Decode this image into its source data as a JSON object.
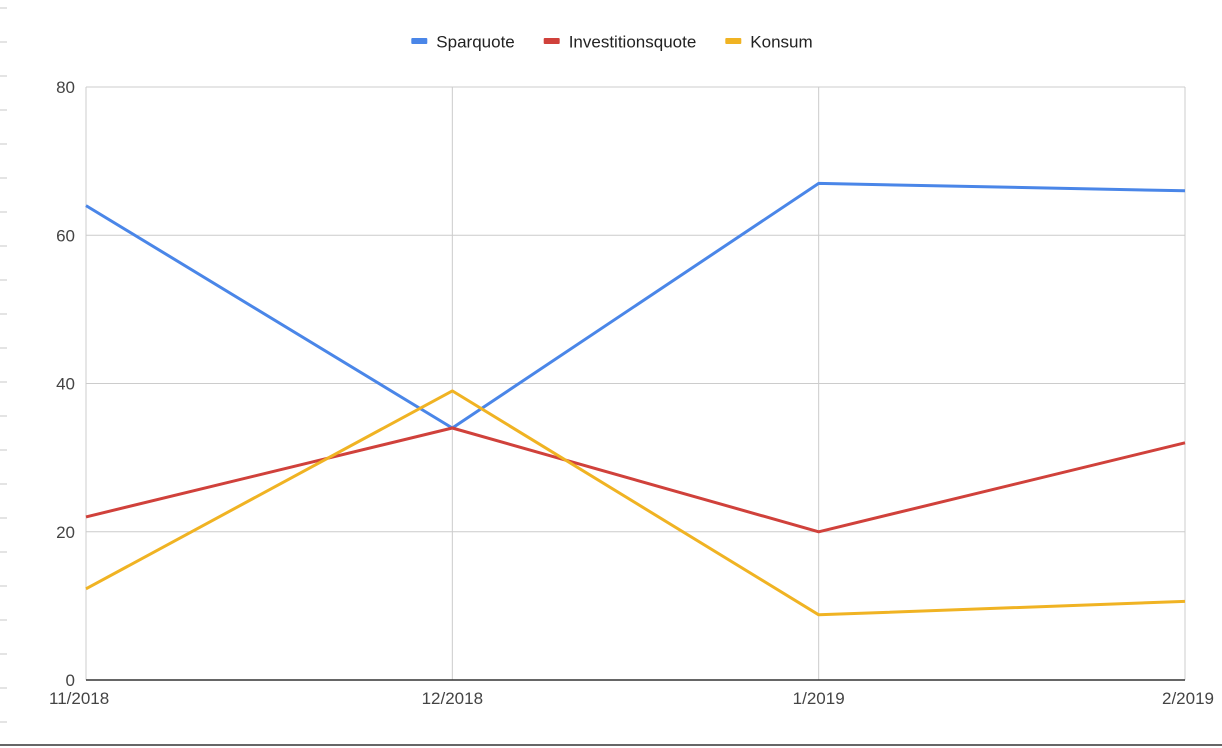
{
  "chart_data": {
    "type": "line",
    "categories": [
      "11/2018",
      "12/2018",
      "1/2019",
      "2/2019"
    ],
    "series": [
      {
        "name": "Sparquote",
        "color": "#4a86e8",
        "values": [
          64,
          34,
          67,
          66
        ]
      },
      {
        "name": "Investitionsquote",
        "color": "#d0413b",
        "values": [
          22,
          34,
          20,
          32
        ]
      },
      {
        "name": "Konsum",
        "color": "#f0b323",
        "values": [
          12.3,
          39,
          8.8,
          10.6
        ]
      }
    ],
    "yticks": [
      0,
      20,
      40,
      60,
      80
    ],
    "ylim": [
      0,
      80
    ],
    "grid": true,
    "legend_position": "top-center",
    "title": "",
    "xlabel": "",
    "ylabel": ""
  }
}
